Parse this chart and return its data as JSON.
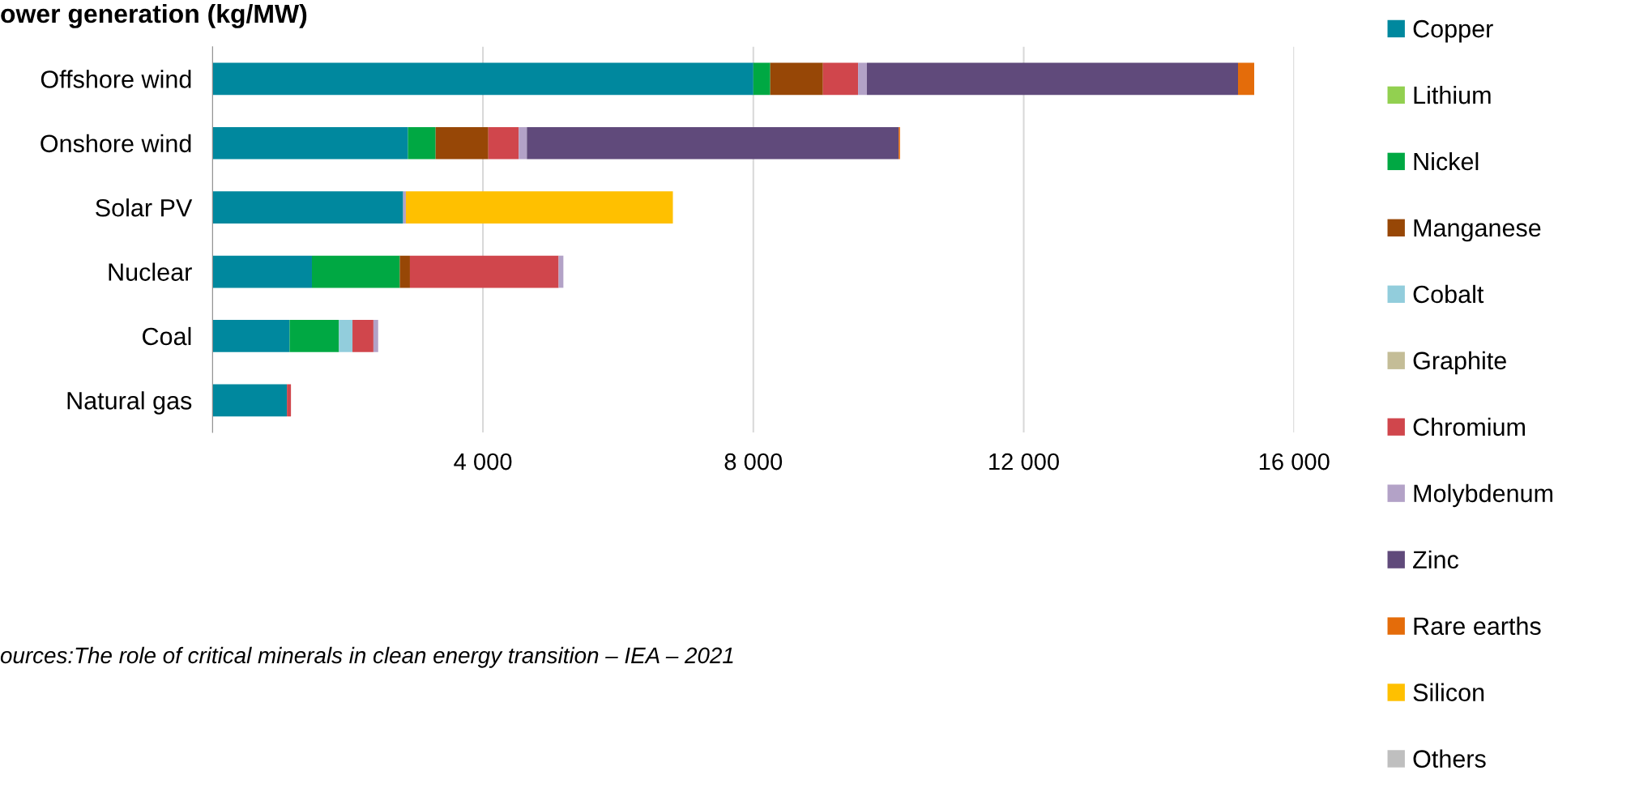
{
  "chart_data": {
    "type": "bar",
    "orientation": "horizontal",
    "stacked": true,
    "title": "ower generation (kg/MW)",
    "categories": [
      "Offshore wind",
      "Onshore wind",
      "Solar PV",
      "Nuclear",
      "Coal",
      "Natural gas"
    ],
    "series": [
      {
        "name": "Copper",
        "color": "#00889e",
        "values": [
          8000,
          2890,
          2820,
          1470,
          1140,
          1100
        ]
      },
      {
        "name": "Lithium",
        "color": "#92d050",
        "values": [
          null,
          null,
          null,
          null,
          null,
          null
        ]
      },
      {
        "name": "Nickel",
        "color": "#00a843",
        "values": [
          250,
          410,
          null,
          1300,
          730,
          null
        ]
      },
      {
        "name": "Manganese",
        "color": "#974706",
        "values": [
          780,
          780,
          null,
          150,
          null,
          null
        ]
      },
      {
        "name": "Cobalt",
        "color": "#92cddc",
        "values": [
          null,
          null,
          null,
          null,
          200,
          null
        ]
      },
      {
        "name": "Graphite",
        "color": "#c4bd97",
        "values": [
          null,
          null,
          null,
          null,
          null,
          null
        ]
      },
      {
        "name": "Chromium",
        "color": "#d0464c",
        "values": [
          520,
          450,
          null,
          2200,
          310,
          60
        ]
      },
      {
        "name": "Molybdenum",
        "color": "#b3a2c7",
        "values": [
          130,
          120,
          40,
          70,
          70,
          null
        ]
      },
      {
        "name": "Zinc",
        "color": "#604a7b",
        "values": [
          5490,
          5500,
          null,
          null,
          null,
          null
        ]
      },
      {
        "name": "Rare earths",
        "color": "#e46c0a",
        "values": [
          240,
          20,
          null,
          null,
          null,
          null
        ]
      },
      {
        "name": "Silicon",
        "color": "#ffc000",
        "values": [
          null,
          null,
          3950,
          null,
          null,
          null
        ]
      },
      {
        "name": "Others",
        "color": "#bfbfbf",
        "values": [
          null,
          null,
          null,
          null,
          null,
          null
        ]
      }
    ],
    "xlim": [
      0,
      16000
    ],
    "xticks": [
      {
        "value": 4000,
        "label": "4 000"
      },
      {
        "value": 8000,
        "label": "8 000"
      },
      {
        "value": 12000,
        "label": "12 000"
      },
      {
        "value": 16000,
        "label": "16 000"
      }
    ],
    "grid": "x",
    "legend": "right",
    "annotations": [
      "ources:The role of critical minerals in clean energy transition – IEA – 2021"
    ]
  }
}
